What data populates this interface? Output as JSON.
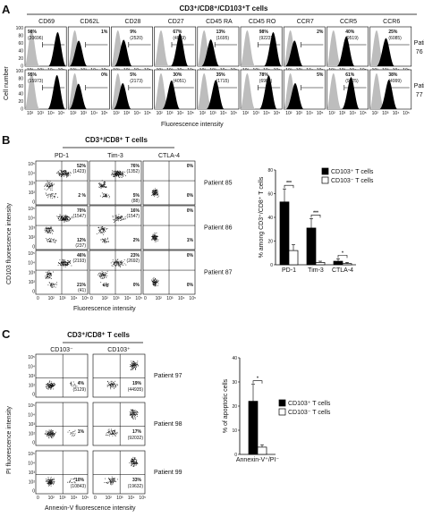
{
  "panels": {
    "a": "A",
    "b": "B",
    "c": "C"
  },
  "panel_a": {
    "header": "CD3⁺/CD8⁺/CD103⁺T cells",
    "markers": [
      "CD69",
      "CD62L",
      "CD28",
      "CD27",
      "CD45 RA",
      "CD45 RO",
      "CCR7",
      "CCR5",
      "CCR6"
    ],
    "y_label": "Cell number",
    "x_label": "Fluorescence intensity",
    "y_ticks": [
      "100",
      "80",
      "60",
      "40",
      "20",
      "0"
    ],
    "x_ticks": [
      "10²",
      "10³",
      "10⁴",
      "10⁵"
    ],
    "rows": [
      {
        "patient": "Patient\n76",
        "patient_line1": "Patient",
        "patient_line2": "76",
        "pct": [
          "98%",
          "1%",
          "9%",
          "67%",
          "13%",
          "98%",
          "2%",
          "40%",
          "25%"
        ],
        "mfi": [
          "(20696)",
          "",
          "(2520)",
          "(4849)",
          "(1695)",
          "(9223)",
          "",
          "(9519)",
          "(6085)"
        ]
      },
      {
        "patient": "Patient\n77",
        "patient_line1": "Patient",
        "patient_line2": "77",
        "pct": [
          "95%",
          "0%",
          "5%",
          "30%",
          "35%",
          "78%",
          "5%",
          "61%",
          "38%"
        ],
        "mfi": [
          "(15973)",
          "",
          "(2173)",
          "(4051)",
          "(1715)",
          "(6982)",
          "",
          "(9225)",
          "(4999)"
        ]
      }
    ]
  },
  "panel_b": {
    "header": "CD3⁺/CD8⁺ T cells",
    "columns": [
      "PD-1",
      "Tim-3",
      "CTLA-4"
    ],
    "y_label": "CD103 fluorescence intensity",
    "x_label": "Fluorescence intensity",
    "y_ticks": [
      "10⁵",
      "10⁴",
      "10³",
      "10²",
      "0"
    ],
    "x_ticks": [
      "0",
      "10²",
      "10³",
      "10⁴",
      "10⁵"
    ],
    "rows": [
      {
        "patient": "Patient 85",
        "cells": [
          {
            "upper": "52%",
            "upper_mfi": "(1423)",
            "lower": "2 %",
            "lower_mfi": ""
          },
          {
            "upper": "76%",
            "upper_mfi": "(1352)",
            "lower": "5%",
            "lower_mfi": "(88)"
          },
          {
            "upper": "0%",
            "upper_mfi": "",
            "lower": "0%",
            "lower_mfi": ""
          }
        ]
      },
      {
        "patient": "Patient 86",
        "cells": [
          {
            "upper": "70%",
            "upper_mfi": "(1547)",
            "lower": "12%",
            "lower_mfi": "(237)"
          },
          {
            "upper": "16%",
            "upper_mfi": "(1547)",
            "lower": "2%",
            "lower_mfi": ""
          },
          {
            "upper": "0%",
            "upper_mfi": "",
            "lower": "1%",
            "lower_mfi": ""
          }
        ]
      },
      {
        "patient": "Patient 87",
        "cells": [
          {
            "upper": "46%",
            "upper_mfi": "(2193)",
            "lower": "21%",
            "lower_mfi": "(41)"
          },
          {
            "upper": "23%",
            "upper_mfi": "(2692)",
            "lower": "0%",
            "lower_mfi": ""
          },
          {
            "upper": "0%",
            "upper_mfi": "",
            "lower": "0%",
            "lower_mfi": ""
          }
        ]
      }
    ]
  },
  "panel_c": {
    "header": "CD3⁺/CD8⁺ T cells",
    "columns": [
      "CD103⁻",
      "CD103⁺"
    ],
    "y_label": "PI fluorescence intensity",
    "x_label": "Annexin-V fluorescence intensity",
    "y_ticks": [
      "10⁵",
      "10⁴",
      "10³",
      "10²",
      "0"
    ],
    "x_ticks": [
      "0",
      "10²",
      "10³",
      "10⁴",
      "10⁵"
    ],
    "rows": [
      {
        "patient": "Patient 97",
        "cells": [
          {
            "pct": "4%",
            "mfi": "(5129)"
          },
          {
            "pct": "19%",
            "mfi": "(44935)"
          }
        ]
      },
      {
        "patient": "Patient 98",
        "cells": [
          {
            "pct": "1%",
            "mfi": ""
          },
          {
            "pct": "17%",
            "mfi": "(92032)"
          }
        ]
      },
      {
        "patient": "Patient 99",
        "cells": [
          {
            "pct": "10%",
            "mfi": "(10843)"
          },
          {
            "pct": "33%",
            "mfi": "(19632)"
          }
        ]
      }
    ]
  },
  "chart_data": [
    {
      "type": "bar",
      "title": "",
      "ylabel": "% among CD3⁺/CD8⁺ T cells",
      "categories": [
        "PD-1",
        "Tim-3",
        "CTLA-4"
      ],
      "series": [
        {
          "name": "CD103⁺ T cells",
          "values": [
            53,
            31,
            3
          ],
          "errors": [
            11,
            8,
            2
          ],
          "color": "#000000"
        },
        {
          "name": "CD103⁻ T cells",
          "values": [
            12,
            2,
            1
          ],
          "errors": [
            5,
            1,
            1
          ],
          "color": "#ffffff"
        }
      ],
      "significance": [
        "***",
        "***",
        "*"
      ],
      "ylim": [
        0,
        80
      ],
      "yticks": [
        "0",
        "20",
        "40",
        "60",
        "80"
      ],
      "legend": "top-right"
    },
    {
      "type": "bar",
      "title": "",
      "ylabel": "% of apoptotic cells",
      "categories": [
        "Annexin-V⁺/PI⁻"
      ],
      "series": [
        {
          "name": "CD103⁺ T cells",
          "values": [
            22
          ],
          "errors": [
            7
          ],
          "color": "#000000"
        },
        {
          "name": "CD103⁻ T cells",
          "values": [
            3
          ],
          "errors": [
            1
          ],
          "color": "#ffffff"
        }
      ],
      "significance": [
        "*"
      ],
      "ylim": [
        0,
        40
      ],
      "yticks": [
        "0",
        "10",
        "20",
        "30",
        "40"
      ],
      "legend": "right"
    }
  ]
}
